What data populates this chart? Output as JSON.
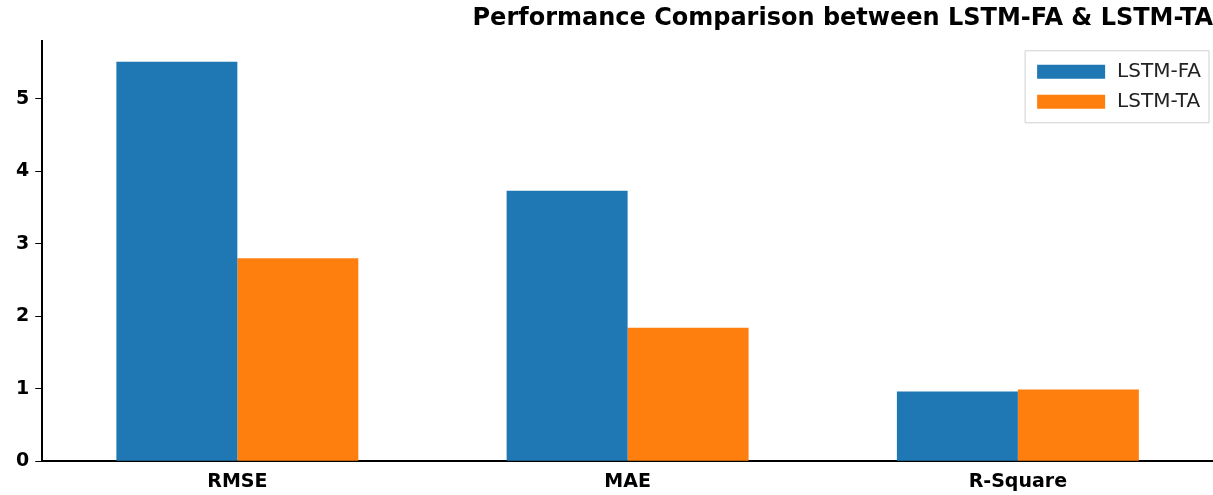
{
  "chart_data": {
    "type": "bar",
    "title": "Performance Comparison between LSTM-FA & LSTM-TA",
    "categories": [
      "RMSE",
      "MAE",
      "R-Square"
    ],
    "series": [
      {
        "name": "LSTM-FA",
        "color": "#1f77b4",
        "values": [
          5.51,
          3.73,
          0.96
        ]
      },
      {
        "name": "LSTM-TA",
        "color": "#ff7f0e",
        "values": [
          2.8,
          1.84,
          0.99
        ]
      }
    ],
    "ylim": [
      0,
      5.8
    ],
    "yticks": [
      0,
      1,
      2,
      3,
      4,
      5
    ],
    "grid": false,
    "legend": "top right"
  }
}
